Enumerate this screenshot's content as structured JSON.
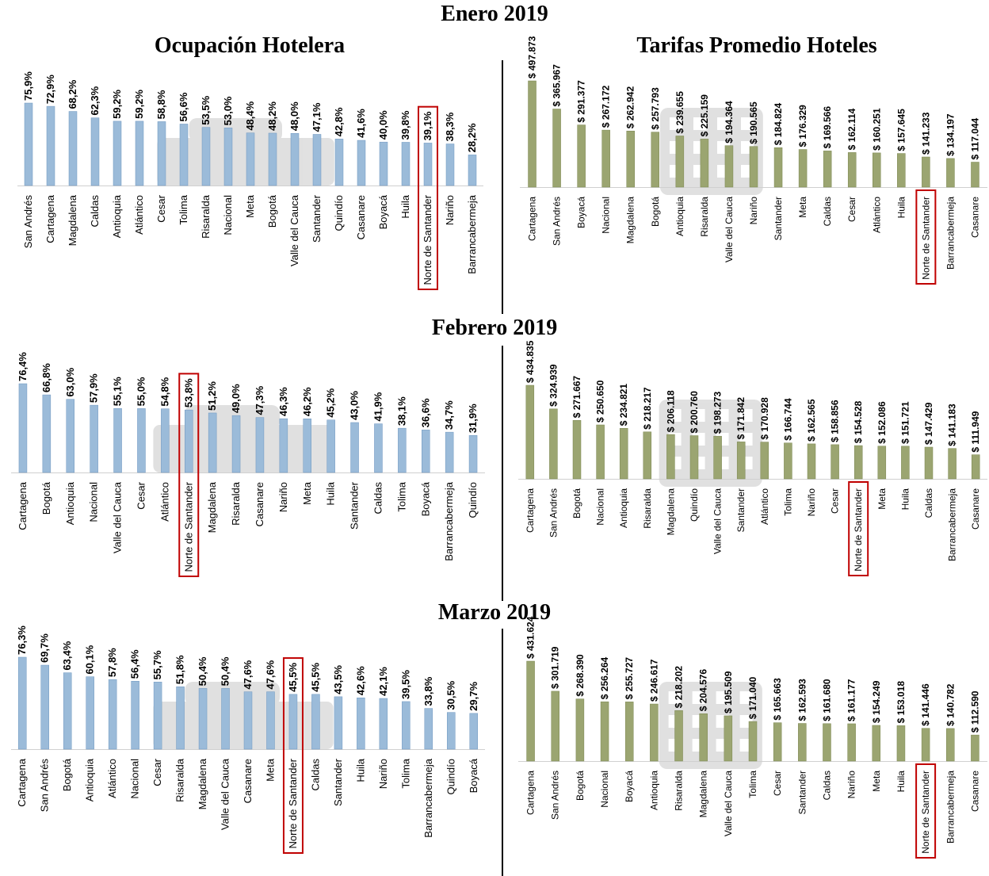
{
  "header": {
    "month_1": "Enero 2019",
    "col_left": "Ocupación Hotelera",
    "col_right": "Tarifas Promedio Hoteles",
    "month_2": "Febrero 2019",
    "month_3": "Marzo 2019"
  },
  "colors": {
    "occupancy_bar": "#9bbbd9",
    "occupancy_bar_edge": "#6f97c0",
    "rate_bar": "#9ba571",
    "rate_bar_edge": "#7b8650",
    "highlight_box": "#c00000"
  },
  "chart_data": [
    {
      "type": "bar",
      "month": "Enero 2019",
      "measure": "Ocupación Hotelera",
      "categories": [
        "San Andrés",
        "Cartagena",
        "Magdalena",
        "Caldas",
        "Antioquia",
        "Atlántico",
        "Cesar",
        "Tolima",
        "Risaralda",
        "Nacional",
        "Meta",
        "Bogotá",
        "Valle del Cauca",
        "Santander",
        "Quindío",
        "Casanare",
        "Boyacá",
        "Huila",
        "Norte de Santander",
        "Nariño",
        "Barrancabermeja"
      ],
      "values": [
        75.9,
        72.9,
        68.2,
        62.3,
        59.2,
        59.2,
        58.8,
        56.6,
        53.5,
        53.0,
        48.4,
        48.2,
        48.0,
        47.1,
        42.8,
        41.6,
        40.0,
        39.8,
        39.1,
        38.3,
        28.2
      ],
      "labels": [
        "75,9%",
        "72,9%",
        "68,2%",
        "62,3%",
        "59,2%",
        "59,2%",
        "58,8%",
        "56,6%",
        "53,5%",
        "53,0%",
        "48,4%",
        "48,2%",
        "48,0%",
        "47,1%",
        "42,8%",
        "41,6%",
        "40,0%",
        "39,8%",
        "39,1%",
        "38,3%",
        "28,2%"
      ],
      "highlight": "Norte de Santander"
    },
    {
      "type": "bar",
      "month": "Enero 2019",
      "measure": "Tarifas Promedio Hoteles",
      "categories": [
        "Cartagena",
        "San Andrés",
        "Boyacá",
        "Nacional",
        "Magdalena",
        "Bogotá",
        "Antioquia",
        "Risaralda",
        "Valle del Cauca",
        "Nariño",
        "Santander",
        "Meta",
        "Caldas",
        "Cesar",
        "Atlántico",
        "Huila",
        "Norte de Santander",
        "Barrancabermeja",
        "Casanare"
      ],
      "values": [
        497873,
        365967,
        291377,
        267172,
        262942,
        257793,
        239655,
        225159,
        194364,
        190565,
        184824,
        176329,
        169566,
        162114,
        160251,
        157645,
        141233,
        134197,
        117044
      ],
      "labels": [
        "$ 497.873",
        "$ 365.967",
        "$ 291.377",
        "$ 267.172",
        "$ 262.942",
        "$ 257.793",
        "$ 239.655",
        "$ 225.159",
        "$ 194.364",
        "$ 190.565",
        "$ 184.824",
        "$ 176.329",
        "$ 169.566",
        "$ 162.114",
        "$ 160.251",
        "$ 157.645",
        "$ 141.233",
        "$ 134.197",
        "$ 117.044"
      ],
      "highlight": "Norte de Santander"
    },
    {
      "type": "bar",
      "month": "Febrero 2019",
      "measure": "Ocupación Hotelera",
      "categories": [
        "Cartagena",
        "Bogotá",
        "Antioquia",
        "Nacional",
        "Valle del Cauca",
        "Cesar",
        "Atlántico",
        "Norte de Santander",
        "Magdalena",
        "Risaralda",
        "Casanare",
        "Nariño",
        "Meta",
        "Huila",
        "Santander",
        "Caldas",
        "Tolima",
        "Boyacá",
        "Barrancabermeja",
        "Quindío"
      ],
      "values": [
        76.4,
        66.8,
        63.0,
        57.9,
        55.1,
        55.0,
        54.8,
        53.8,
        51.2,
        49.0,
        47.3,
        46.3,
        46.2,
        45.2,
        43.0,
        41.9,
        38.1,
        36.6,
        34.7,
        31.9
      ],
      "labels": [
        "76,4%",
        "66,8%",
        "63,0%",
        "57,9%",
        "55,1%",
        "55,0%",
        "54,8%",
        "53,8%",
        "51,2%",
        "49,0%",
        "47,3%",
        "46,3%",
        "46,2%",
        "45,2%",
        "43,0%",
        "41,9%",
        "38,1%",
        "36,6%",
        "34,7%",
        "31,9%"
      ],
      "highlight": "Norte de Santander"
    },
    {
      "type": "bar",
      "month": "Febrero 2019",
      "measure": "Tarifas Promedio Hoteles",
      "categories": [
        "Cartagena",
        "San Andrés",
        "Bogotá",
        "Nacional",
        "Antioquia",
        "Risaralda",
        "Magdalena",
        "Quindío",
        "Valle del Cauca",
        "Santander",
        "Atlántico",
        "Tolima",
        "Nariño",
        "Cesar",
        "Norte de Santander",
        "Meta",
        "Huila",
        "Caldas",
        "Barrancabermeja",
        "Casanare"
      ],
      "values": [
        434835,
        324939,
        271667,
        250650,
        234821,
        218217,
        206118,
        200760,
        198273,
        171842,
        170928,
        166744,
        162565,
        158856,
        154528,
        152086,
        151721,
        147429,
        141183,
        111949
      ],
      "labels": [
        "$ 434.835",
        "$ 324.939",
        "$ 271.667",
        "$ 250.650",
        "$ 234.821",
        "$ 218.217",
        "$ 206.118",
        "$ 200.760",
        "$ 198.273",
        "$ 171.842",
        "$ 170.928",
        "$ 166.744",
        "$ 162.565",
        "$ 158.856",
        "$ 154.528",
        "$ 152.086",
        "$ 151.721",
        "$ 147.429",
        "$ 141.183",
        "$ 111.949"
      ],
      "highlight": "Norte de Santander"
    },
    {
      "type": "bar",
      "month": "Marzo 2019",
      "measure": "Ocupación Hotelera",
      "categories": [
        "Cartagena",
        "San Andrés",
        "Bogotá",
        "Antioquia",
        "Atlántico",
        "Nacional",
        "Cesar",
        "Risaralda",
        "Magdalena",
        "Valle del Cauca",
        "Casanare",
        "Meta",
        "Norte de Santander",
        "Caldas",
        "Santander",
        "Huila",
        "Nariño",
        "Tolima",
        "Barrancabermeja",
        "Quindío",
        "Boyacá"
      ],
      "values": [
        76.3,
        69.7,
        63.4,
        60.1,
        57.8,
        56.4,
        55.7,
        51.8,
        50.4,
        50.4,
        47.6,
        47.6,
        45.5,
        45.5,
        43.5,
        42.6,
        42.1,
        39.5,
        33.8,
        30.5,
        29.7
      ],
      "labels": [
        "76,3%",
        "69,7%",
        "63,4%",
        "60,1%",
        "57,8%",
        "56,4%",
        "55,7%",
        "51,8%",
        "50,4%",
        "50,4%",
        "47,6%",
        "47,6%",
        "45,5%",
        "45,5%",
        "43,5%",
        "42,6%",
        "42,1%",
        "39,5%",
        "33,8%",
        "30,5%",
        "29,7%"
      ],
      "highlight": "Norte de Santander"
    },
    {
      "type": "bar",
      "month": "Marzo 2019",
      "measure": "Tarifas Promedio Hoteles",
      "categories": [
        "Cartagena",
        "San Andrés",
        "Bogotá",
        "Nacional",
        "Boyacá",
        "Antioquia",
        "Risaralda",
        "Magdalena",
        "Valle del Cauca",
        "Tolima",
        "Cesar",
        "Santander",
        "Caldas",
        "Nariño",
        "Meta",
        "Huila",
        "Norte de Santander",
        "Barrancabermeja",
        "Casanare"
      ],
      "values": [
        431624,
        301719,
        268390,
        256264,
        255727,
        246617,
        218202,
        204576,
        195509,
        171040,
        165663,
        162593,
        161680,
        161177,
        154249,
        153018,
        141446,
        140782,
        112590
      ],
      "labels": [
        "$ 431.624",
        "$ 301.719",
        "$ 268.390",
        "$ 256.264",
        "$ 255.727",
        "$ 246.617",
        "$ 218.202",
        "$ 204.576",
        "$ 195.509",
        "$ 171.040",
        "$ 165.663",
        "$ 162.593",
        "$ 161.680",
        "$ 161.177",
        "$ 154.249",
        "$ 153.018",
        "$ 141.446",
        "$ 140.782",
        "$ 112.590"
      ],
      "highlight": "Norte de Santander"
    }
  ]
}
